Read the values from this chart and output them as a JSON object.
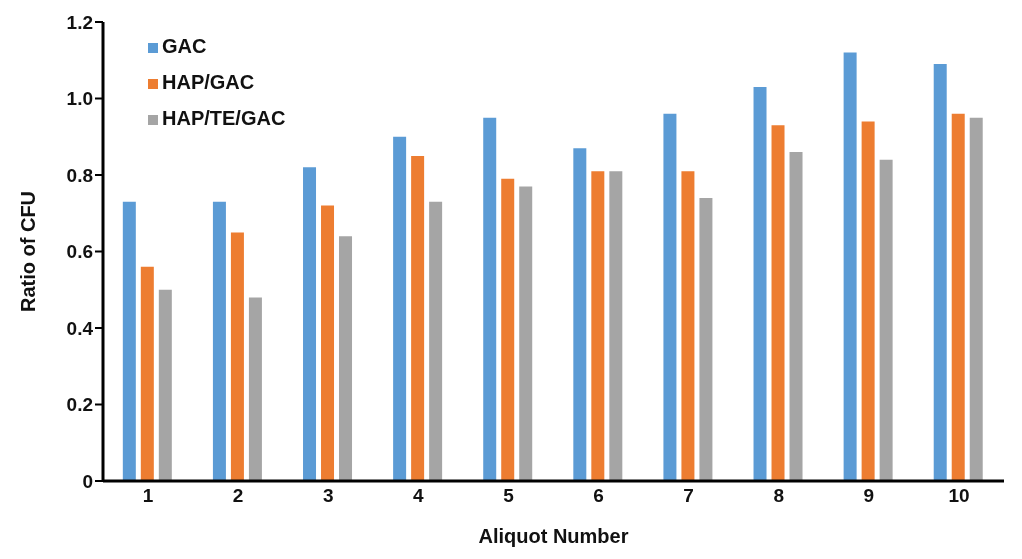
{
  "chart_data": {
    "type": "bar",
    "xlabel": "Aliquot Number",
    "ylabel": "Ratio of CFU",
    "categories": [
      "1",
      "2",
      "3",
      "4",
      "5",
      "6",
      "7",
      "8",
      "9",
      "10"
    ],
    "series": [
      {
        "name": "GAC",
        "color": "#5b9bd5",
        "values": [
          0.73,
          0.73,
          0.82,
          0.9,
          0.95,
          0.87,
          0.96,
          1.03,
          1.12,
          1.09
        ]
      },
      {
        "name": "HAP/GAC",
        "color": "#ed7d31",
        "values": [
          0.56,
          0.65,
          0.72,
          0.85,
          0.79,
          0.81,
          0.81,
          0.93,
          0.94,
          0.96
        ]
      },
      {
        "name": "HAP/TE/GAC",
        "color": "#a5a5a5",
        "values": [
          0.5,
          0.48,
          0.64,
          0.73,
          0.77,
          0.81,
          0.74,
          0.86,
          0.84,
          0.95
        ]
      }
    ],
    "ylim": [
      0,
      1.2
    ],
    "yticks": [
      {
        "value": 0,
        "label": "0"
      },
      {
        "value": 0.2,
        "label": "0.2"
      },
      {
        "value": 0.4,
        "label": "0.4"
      },
      {
        "value": 0.6,
        "label": "0.6"
      },
      {
        "value": 0.8,
        "label": "0.8"
      },
      {
        "value": 1,
        "label": "1.0"
      },
      {
        "value": 1.2,
        "label": "1.2"
      }
    ],
    "grid": false,
    "legend": "top left"
  }
}
